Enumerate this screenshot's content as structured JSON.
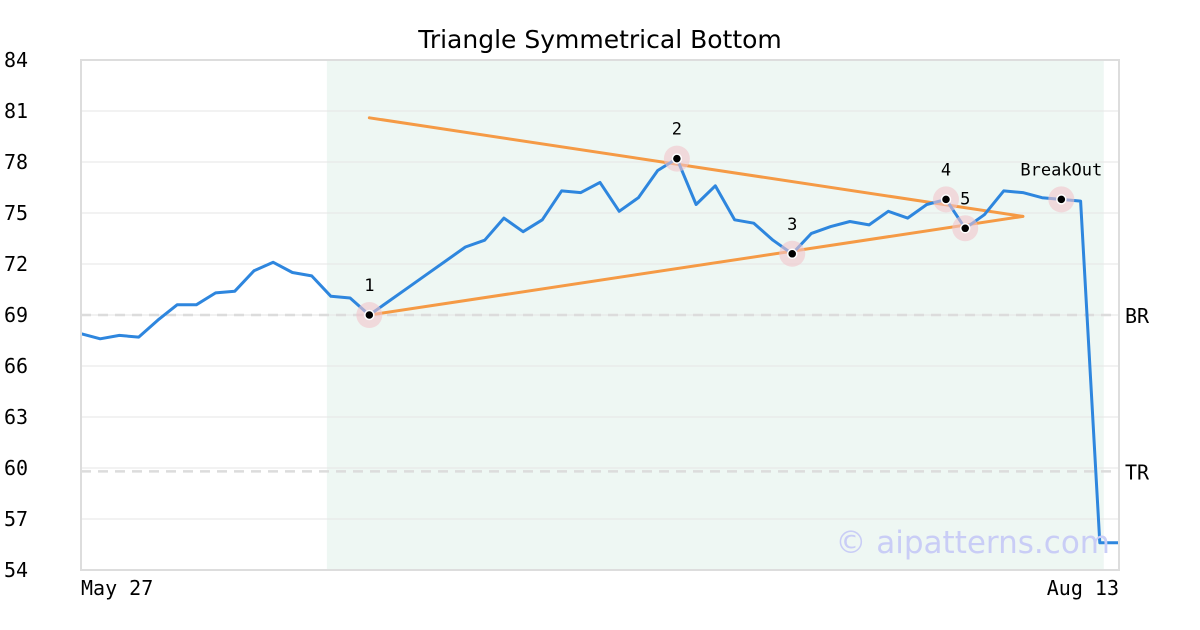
{
  "chart_data": {
    "type": "line",
    "title": "Triangle Symmetrical Bottom",
    "watermark": "© aipatterns.com",
    "ylim": [
      54,
      84
    ],
    "yticks": [
      54,
      57,
      60,
      63,
      66,
      69,
      72,
      75,
      78,
      81,
      84
    ],
    "x_start_label": "May 27",
    "x_end_label": "Aug 13",
    "grid": true,
    "series": [
      {
        "color": "#2e86de",
        "values": [
          67.9,
          67.6,
          67.8,
          67.7,
          68.7,
          69.6,
          69.6,
          70.3,
          70.4,
          71.6,
          72.1,
          71.5,
          71.3,
          70.1,
          70.0,
          69.0,
          69.8,
          70.6,
          71.4,
          72.2,
          73.0,
          73.4,
          74.7,
          73.9,
          74.6,
          76.3,
          76.2,
          76.8,
          75.1,
          75.9,
          77.5,
          78.2,
          75.5,
          76.6,
          74.6,
          74.4,
          73.4,
          72.6,
          73.8,
          74.2,
          74.5,
          74.3,
          75.1,
          74.7,
          75.5,
          75.8,
          74.1,
          74.9,
          76.3,
          76.2,
          75.9,
          75.8,
          75.7,
          55.6,
          55.6
        ]
      }
    ],
    "highlight_band": {
      "start_index": 13,
      "end_index": 53,
      "color": "#eef7f3"
    },
    "horizontal_levels": [
      {
        "label": "BR",
        "value": 69.0
      },
      {
        "label": "TR",
        "value": 59.8
      }
    ],
    "trendlines": [
      {
        "color": "#f59a45",
        "from": {
          "index": 15,
          "value": 80.6
        },
        "to": {
          "index": 49,
          "value": 74.8
        }
      },
      {
        "color": "#f59a45",
        "from": {
          "index": 15,
          "value": 69.0
        },
        "to": {
          "index": 49,
          "value": 74.8
        }
      }
    ],
    "pattern_points": [
      {
        "label": "1",
        "index": 15,
        "value": 69.0,
        "label_pos": "above"
      },
      {
        "label": "2",
        "index": 31,
        "value": 78.2,
        "label_pos": "above"
      },
      {
        "label": "3",
        "index": 37,
        "value": 72.6,
        "label_pos": "above"
      },
      {
        "label": "4",
        "index": 45,
        "value": 75.8,
        "label_pos": "above"
      },
      {
        "label": "5",
        "index": 46,
        "value": 74.1,
        "label_pos": "above"
      },
      {
        "label": "BreakOut",
        "index": 51,
        "value": 75.8,
        "label_pos": "above"
      }
    ]
  }
}
